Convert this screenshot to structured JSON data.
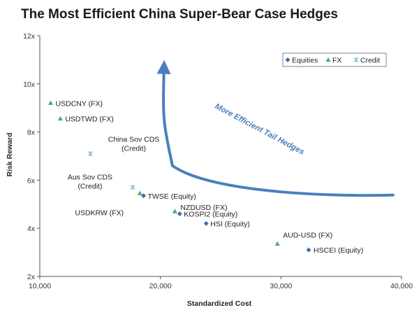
{
  "chart_data": {
    "type": "scatter",
    "title": "The Most Efficient China Super-Bear Case Hedges",
    "xlabel": "Standardized Cost",
    "ylabel": "Risk Reward",
    "xlim": [
      10000,
      40000
    ],
    "ylim": [
      2,
      12
    ],
    "x_ticks": [
      10000,
      20000,
      30000,
      40000
    ],
    "x_tick_labels": [
      "10,000",
      "20,000",
      "30,000",
      "40,000"
    ],
    "y_ticks": [
      2,
      4,
      6,
      8,
      10,
      12
    ],
    "y_tick_labels": [
      "2x",
      "4x",
      "6x",
      "8x",
      "10x",
      "12x"
    ],
    "grid": false,
    "legend_position": "top-right",
    "colors": {
      "equities": "#3d6eb5",
      "fx": "#5aa86a",
      "credit": "#7fb9d8",
      "arrow": "#4a7fbf"
    },
    "series": [
      {
        "name": "Equities",
        "marker": "diamond",
        "points": [
          {
            "x": 18600,
            "y": 5.35,
            "label": "TWSE (Equity)"
          },
          {
            "x": 21600,
            "y": 4.6,
            "label": "KOSPI2 (Equity)"
          },
          {
            "x": 23800,
            "y": 4.2,
            "label": "HSI (Equity)"
          },
          {
            "x": 32300,
            "y": 3.1,
            "label": "HSCEI (Equity)"
          }
        ]
      },
      {
        "name": "FX",
        "marker": "triangle",
        "points": [
          {
            "x": 10900,
            "y": 9.2,
            "label": "USDCNY (FX)"
          },
          {
            "x": 11700,
            "y": 8.55,
            "label": "USDTWD (FX)"
          },
          {
            "x": 18300,
            "y": 5.45,
            "label": "USDKRW (FX)"
          },
          {
            "x": 21200,
            "y": 4.7,
            "label": "NZDUSD (FX)"
          },
          {
            "x": 29700,
            "y": 3.35,
            "label": "AUD-USD (FX)"
          }
        ]
      },
      {
        "name": "Credit",
        "marker": "asterisk",
        "points": [
          {
            "x": 14200,
            "y": 7.1,
            "label": "China Sov CDS (Credit)"
          },
          {
            "x": 17700,
            "y": 5.7,
            "label": "Aus Sov CDS (Credit)"
          }
        ]
      }
    ],
    "annotation": {
      "text": "More Efficient Tail Hedges",
      "arrow_path": [
        [
          39300,
          5.38
        ],
        [
          33000,
          5.3
        ],
        [
          24000,
          5.55
        ],
        [
          21000,
          6.6
        ],
        [
          20200,
          8.5
        ],
        [
          20300,
          10.7
        ]
      ]
    }
  }
}
